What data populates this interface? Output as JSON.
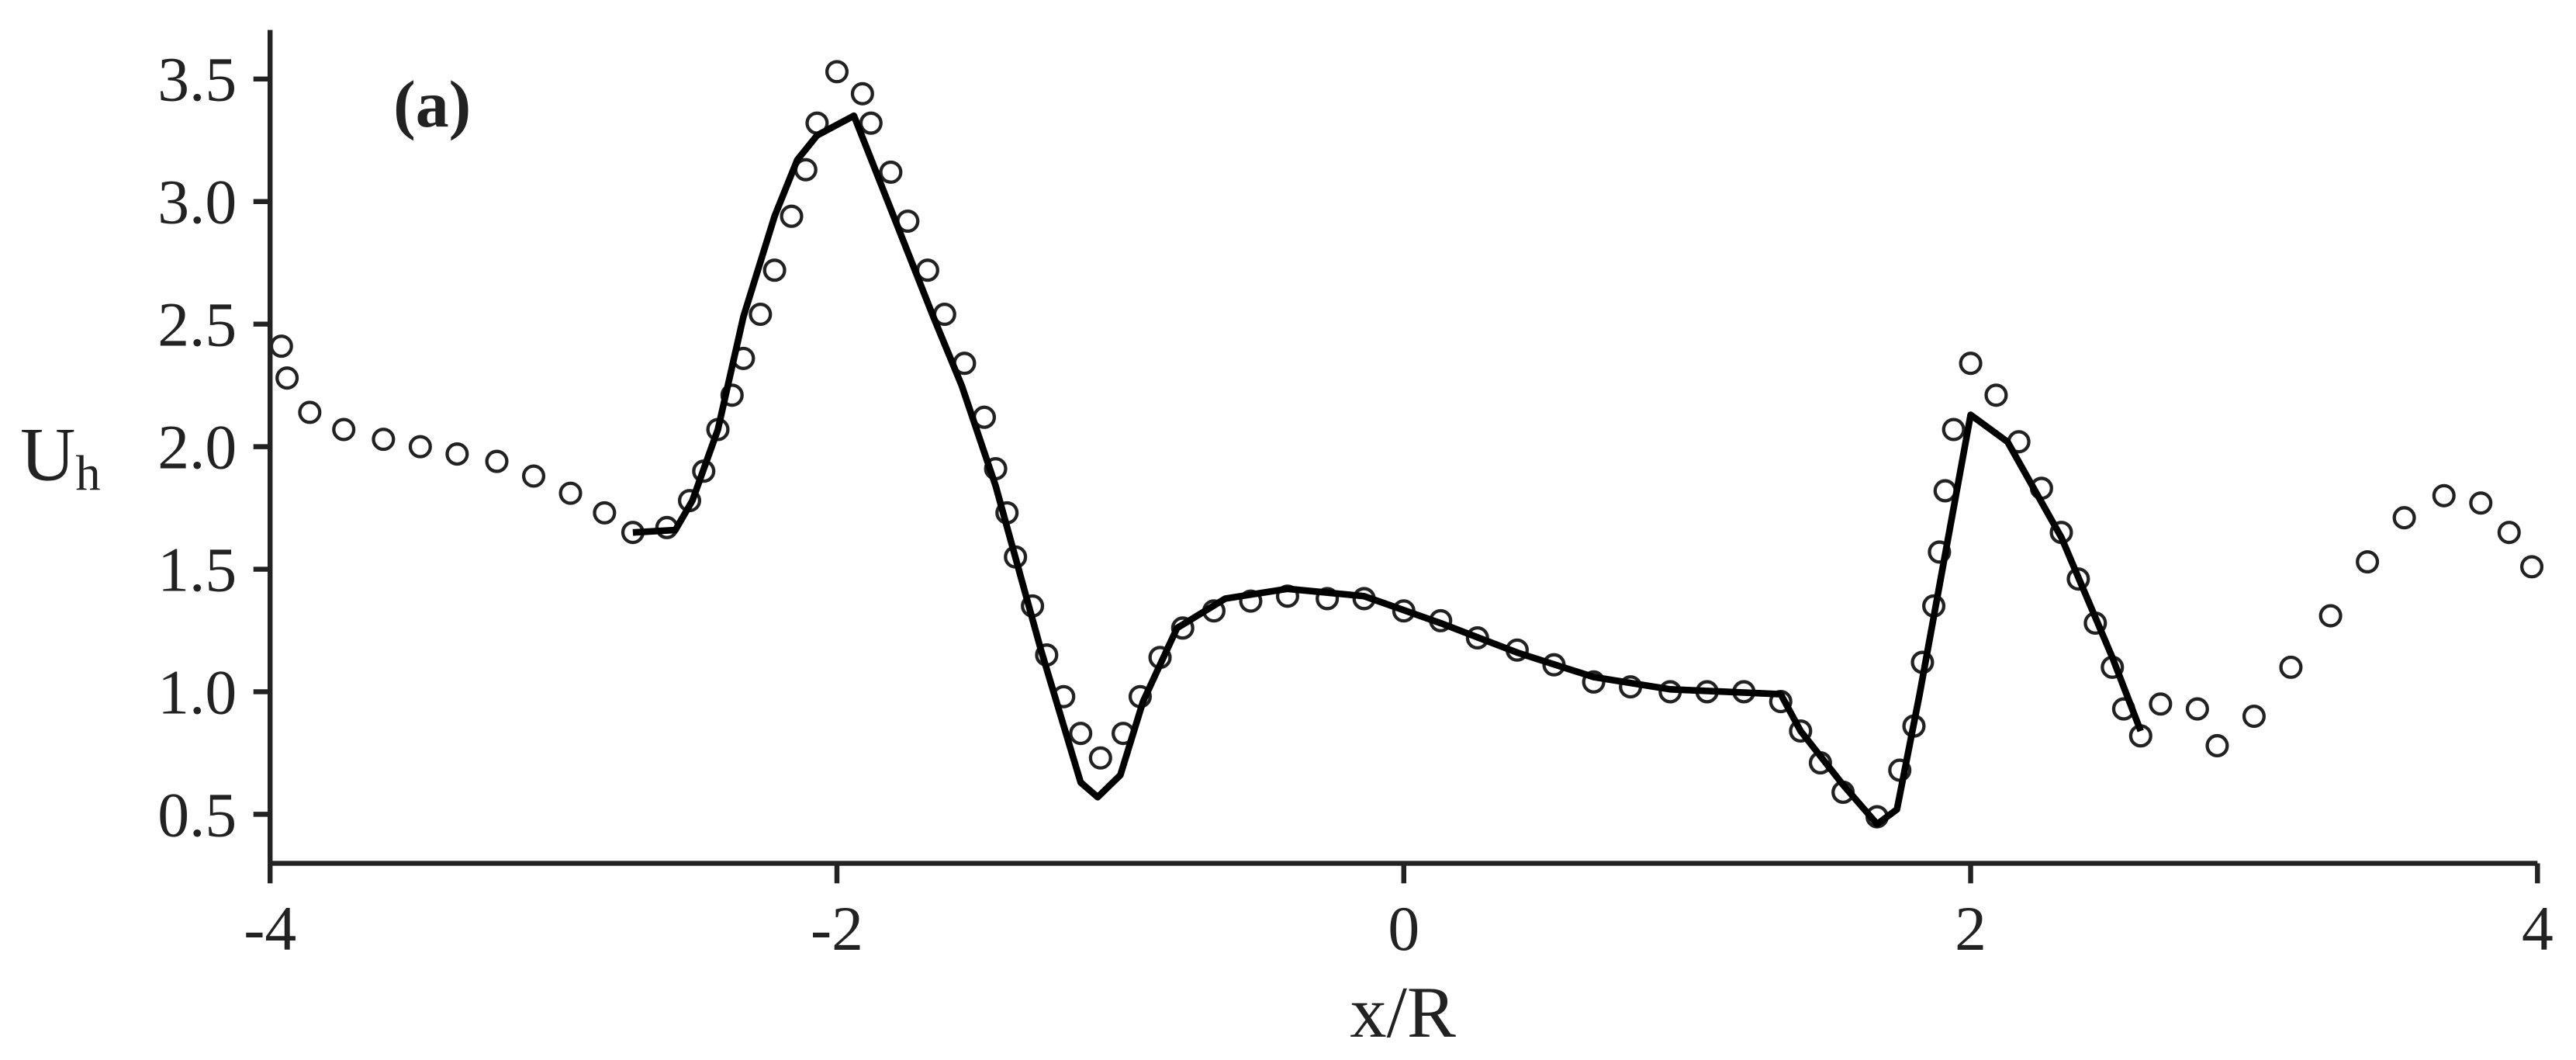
{
  "chart_data": {
    "type": "line",
    "panel_label": "(a)",
    "x_label": "x/R",
    "y_label": "U",
    "y_label_sub": "h",
    "xlim": [
      -4,
      4
    ],
    "ylim": [
      0.3,
      3.7
    ],
    "xticks": [
      -4,
      -2,
      0,
      2,
      4
    ],
    "yticks": [
      {
        "value": 0.5,
        "label": "0.5"
      },
      {
        "value": 1,
        "label": "1.0"
      },
      {
        "value": 1.5,
        "label": "1.5"
      },
      {
        "value": 2,
        "label": "2.0"
      },
      {
        "value": 2.5,
        "label": "2.5"
      },
      {
        "value": 3,
        "label": "3.0"
      },
      {
        "value": 3.5,
        "label": "3.5"
      }
    ],
    "series": [
      {
        "style": "markers",
        "color": "#222222",
        "x": [
          -3.96,
          -3.94,
          -3.86,
          -3.74,
          -3.6,
          -3.47,
          -3.34,
          -3.2,
          -3.07,
          -2.94,
          -2.82,
          -2.72,
          -2.6,
          -2.52,
          -2.47,
          -2.42,
          -2.37,
          -2.33,
          -2.27,
          -2.22,
          -2.16,
          -2.11,
          -2.07,
          -2.0,
          -1.91,
          -1.88,
          -1.81,
          -1.75,
          -1.68,
          -1.62,
          -1.55,
          -1.48,
          -1.44,
          -1.4,
          -1.37,
          -1.31,
          -1.26,
          -1.2,
          -1.14,
          -1.07,
          -0.99,
          -0.93,
          -0.86,
          -0.78,
          -0.67,
          -0.54,
          -0.41,
          -0.27,
          -0.14,
          0.0,
          0.13,
          0.26,
          0.4,
          0.53,
          0.67,
          0.8,
          0.94,
          1.07,
          1.2,
          1.33,
          1.4,
          1.47,
          1.55,
          1.67,
          1.75,
          1.8,
          1.83,
          1.87,
          1.89,
          1.91,
          1.94,
          2.0,
          2.09,
          2.17,
          2.25,
          2.32,
          2.38,
          2.44,
          2.5,
          2.54,
          2.6,
          2.67,
          2.8,
          2.87,
          3.0,
          3.13,
          3.27,
          3.4,
          3.53,
          3.67,
          3.8,
          3.9,
          3.98
        ],
        "values": [
          2.41,
          2.28,
          2.14,
          2.07,
          2.03,
          2.0,
          1.97,
          1.94,
          1.88,
          1.81,
          1.73,
          1.65,
          1.67,
          1.78,
          1.9,
          2.07,
          2.21,
          2.36,
          2.54,
          2.72,
          2.94,
          3.13,
          3.32,
          3.53,
          3.44,
          3.32,
          3.12,
          2.92,
          2.72,
          2.54,
          2.34,
          2.12,
          1.91,
          1.73,
          1.55,
          1.35,
          1.15,
          0.98,
          0.83,
          0.73,
          0.83,
          0.98,
          1.14,
          1.26,
          1.33,
          1.37,
          1.39,
          1.38,
          1.38,
          1.33,
          1.29,
          1.22,
          1.17,
          1.11,
          1.04,
          1.02,
          1.0,
          1.0,
          1.0,
          0.96,
          0.84,
          0.71,
          0.59,
          0.49,
          0.68,
          0.86,
          1.12,
          1.35,
          1.57,
          1.82,
          2.07,
          2.34,
          2.21,
          2.02,
          1.83,
          1.65,
          1.46,
          1.28,
          1.1,
          0.93,
          0.82,
          0.95,
          0.93,
          0.78,
          0.9,
          1.1,
          1.31,
          1.53,
          1.71,
          1.8,
          1.77,
          1.65,
          1.51
        ]
      },
      {
        "style": "line",
        "color": "#000000",
        "x": [
          -2.72,
          -2.57,
          -2.51,
          -2.42,
          -2.33,
          -2.22,
          -2.14,
          -2.07,
          -1.94,
          -1.66,
          -1.56,
          -1.44,
          -1.28,
          -1.14,
          -1.08,
          -1.0,
          -0.92,
          -0.8,
          -0.63,
          -0.41,
          -0.14,
          0.13,
          0.4,
          0.67,
          0.94,
          1.33,
          1.4,
          1.55,
          1.67,
          1.74,
          1.82,
          2.0,
          2.13,
          2.32,
          2.5,
          2.6
        ],
        "values": [
          1.65,
          1.66,
          1.78,
          2.07,
          2.53,
          2.94,
          3.17,
          3.27,
          3.35,
          2.53,
          2.25,
          1.84,
          1.17,
          0.63,
          0.57,
          0.66,
          0.96,
          1.26,
          1.38,
          1.42,
          1.39,
          1.28,
          1.16,
          1.06,
          1.01,
          0.99,
          0.84,
          0.62,
          0.46,
          0.52,
          0.99,
          2.13,
          2.02,
          1.63,
          1.14,
          0.84
        ]
      }
    ]
  }
}
